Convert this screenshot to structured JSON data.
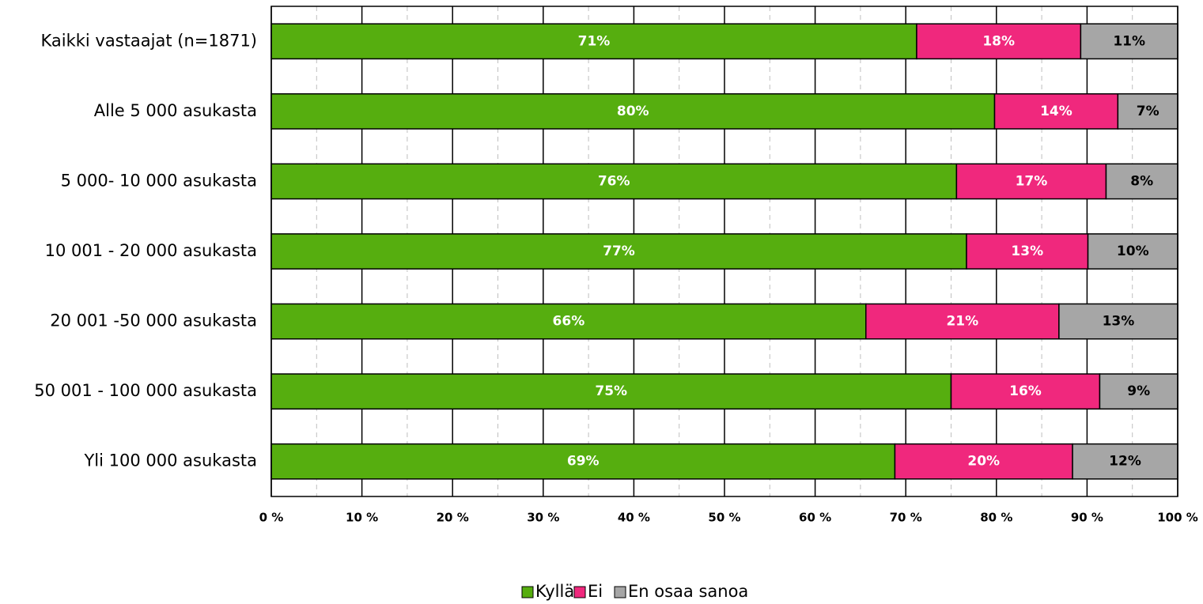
{
  "chart_data": {
    "type": "stacked_barh",
    "categories": [
      "Kaikki vastaajat (n=1871)",
      "Alle 5 000 asukasta",
      "5 000- 10 000 asukasta",
      "10 001 - 20 000 asukasta",
      "20 001 -50 000 asukasta",
      "50 001 - 100 000 asukasta",
      "Yli 100 000 asukasta"
    ],
    "series": [
      {
        "name": "Kyllä",
        "color": "#56ae0f",
        "label_color": "#ffffff",
        "values": [
          71.2,
          79.8,
          75.6,
          76.7,
          65.6,
          75.0,
          68.8
        ],
        "value_labels": [
          "71%",
          "80%",
          "76%",
          "77%",
          "66%",
          "75%",
          "69%"
        ]
      },
      {
        "name": "Ei",
        "color": "#f0287d",
        "label_color": "#ffffff",
        "values": [
          18.1,
          13.6,
          16.5,
          13.4,
          21.3,
          16.4,
          19.6
        ],
        "value_labels": [
          "18%",
          "14%",
          "17%",
          "13%",
          "21%",
          "16%",
          "20%"
        ]
      },
      {
        "name": "En osaa sanoa",
        "color": "#a6a6a6",
        "label_color": "#000000",
        "values": [
          10.7,
          6.6,
          7.9,
          9.9,
          13.1,
          8.6,
          11.6
        ],
        "value_labels": [
          "11%",
          "7%",
          "8%",
          "10%",
          "13%",
          "9%",
          "12%"
        ]
      }
    ],
    "xlim": [
      0,
      100
    ],
    "xticks": [
      {
        "value": 0,
        "label": "0 %"
      },
      {
        "value": 10,
        "label": "10 %"
      },
      {
        "value": 20,
        "label": "20 %"
      },
      {
        "value": 30,
        "label": "30 %"
      },
      {
        "value": 40,
        "label": "40 %"
      },
      {
        "value": 50,
        "label": "50 %"
      },
      {
        "value": 60,
        "label": "60 %"
      },
      {
        "value": 70,
        "label": "70 %"
      },
      {
        "value": 80,
        "label": "80 %"
      },
      {
        "value": 90,
        "label": "90 %"
      },
      {
        "value": 100,
        "label": "100 %"
      }
    ],
    "xminor": [
      5,
      15,
      25,
      35,
      45,
      55,
      65,
      75,
      85,
      95
    ],
    "grid": true,
    "legend": "bottom"
  }
}
